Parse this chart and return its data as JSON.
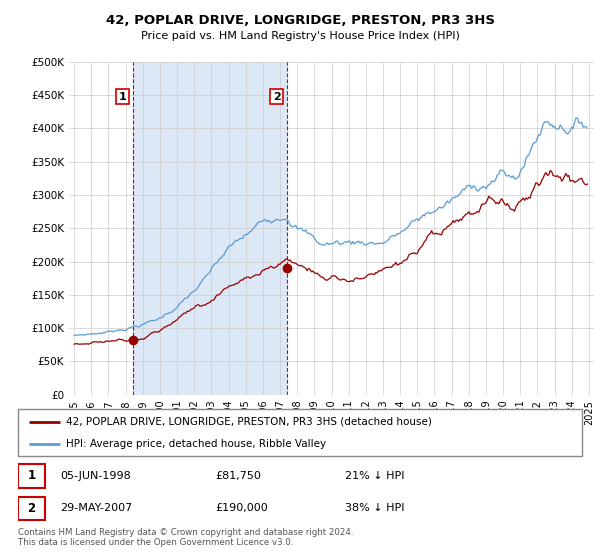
{
  "title": "42, POPLAR DRIVE, LONGRIDGE, PRESTON, PR3 3HS",
  "subtitle": "Price paid vs. HM Land Registry's House Price Index (HPI)",
  "ylim": [
    0,
    500000
  ],
  "yticks": [
    0,
    50000,
    100000,
    150000,
    200000,
    250000,
    300000,
    350000,
    400000,
    450000,
    500000
  ],
  "xlim_start": 1994.7,
  "xlim_end": 2025.3,
  "hpi_color": "#5b9bd5",
  "price_color": "#990000",
  "dot_color": "#990000",
  "shade_color": "#dce8f5",
  "sale1_x": 1998.43,
  "sale1_y": 81750,
  "sale2_x": 2007.41,
  "sale2_y": 190000,
  "legend_line1": "42, POPLAR DRIVE, LONGRIDGE, PRESTON, PR3 3HS (detached house)",
  "legend_line2": "HPI: Average price, detached house, Ribble Valley",
  "info1_num": "1",
  "info1_date": "05-JUN-1998",
  "info1_price": "£81,750",
  "info1_hpi": "21% ↓ HPI",
  "info2_num": "2",
  "info2_date": "29-MAY-2007",
  "info2_price": "£190,000",
  "info2_hpi": "38% ↓ HPI",
  "footnote": "Contains HM Land Registry data © Crown copyright and database right 2024.\nThis data is licensed under the Open Government Licence v3.0.",
  "background_color": "#ffffff",
  "grid_color": "#cccccc"
}
